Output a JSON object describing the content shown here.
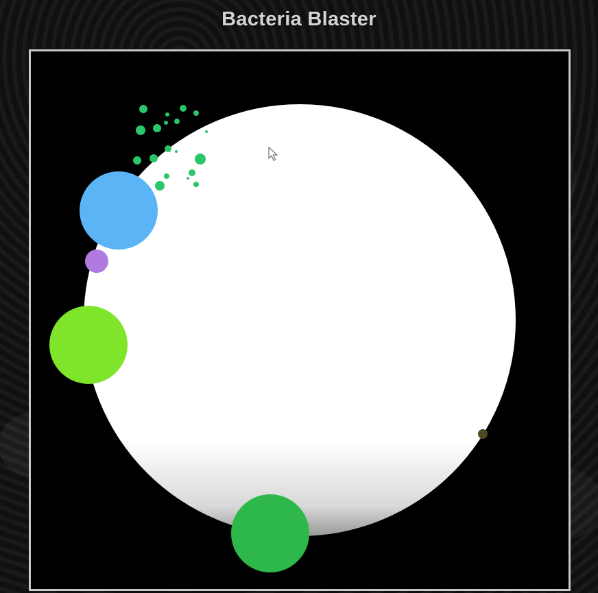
{
  "game": {
    "title": "Bacteria Blaster"
  },
  "colors": {
    "background": "#000000",
    "frame_border": "#c9c9c9",
    "dish": "#ffffff",
    "title_text": "#d4d4d4",
    "bacteria_blue": "#5ab4f6",
    "bacteria_purple": "#b07ae0",
    "bacteria_lime": "#7ee52a",
    "bacteria_green": "#2fb84a",
    "bacteria_olive": "#4a4a1e",
    "spray_particles": "#2ac76a"
  },
  "icons": {
    "cursor": "mouse-pointer-icon"
  }
}
